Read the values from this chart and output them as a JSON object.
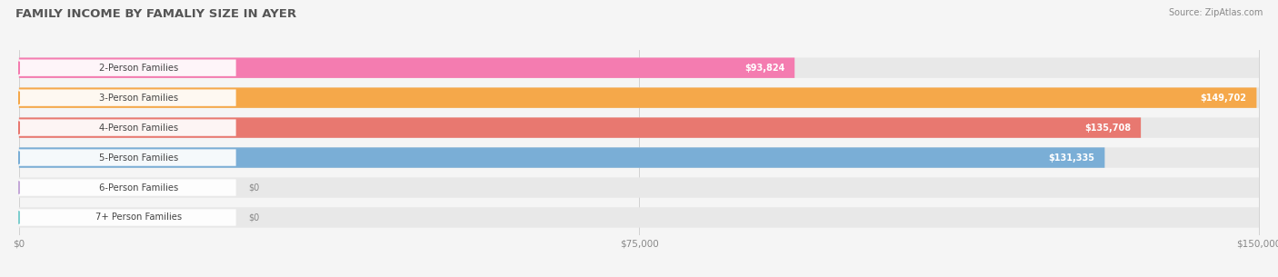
{
  "title": "FAMILY INCOME BY FAMALIY SIZE IN AYER",
  "source": "Source: ZipAtlas.com",
  "categories": [
    "2-Person Families",
    "3-Person Families",
    "4-Person Families",
    "5-Person Families",
    "6-Person Families",
    "7+ Person Families"
  ],
  "values": [
    93824,
    149702,
    135708,
    131335,
    0,
    0
  ],
  "bar_colors": [
    "#f47cb0",
    "#f5a84a",
    "#e87870",
    "#7aaed6",
    "#c4a8d8",
    "#7ecece"
  ],
  "value_labels": [
    "$93,824",
    "$149,702",
    "$135,708",
    "$131,335",
    "$0",
    "$0"
  ],
  "xmax": 150000,
  "xticks": [
    0,
    75000,
    150000
  ],
  "xticklabels": [
    "$0",
    "$75,000",
    "$150,000"
  ],
  "background_color": "#f5f5f5",
  "bar_bg_color": "#e8e8e8",
  "bar_bg_color2": "#efefef"
}
